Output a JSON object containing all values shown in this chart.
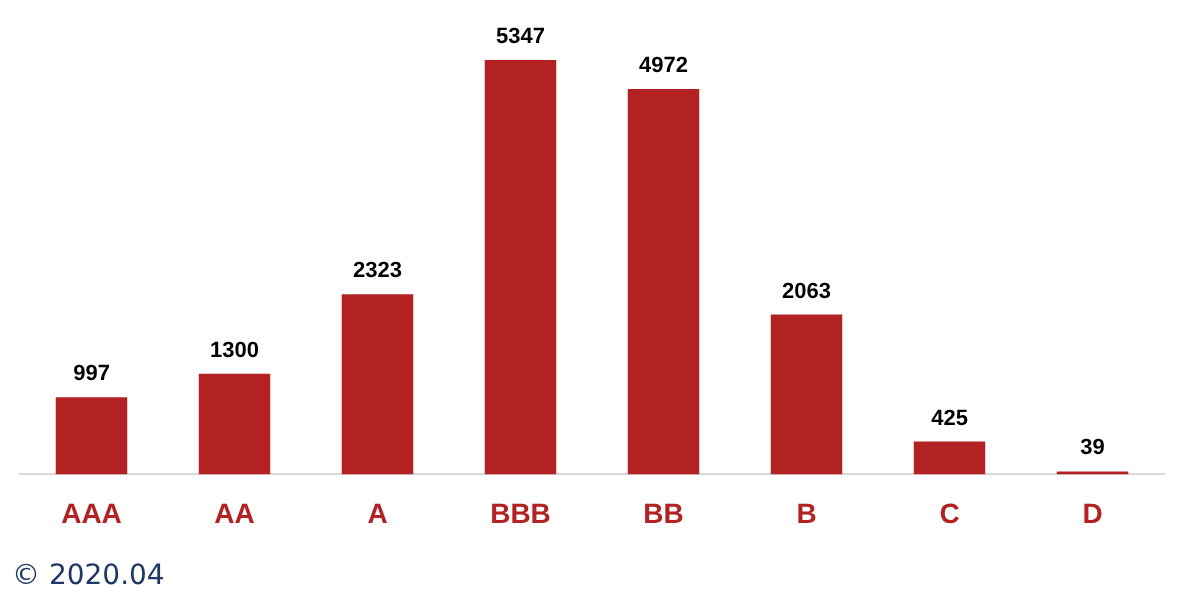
{
  "chart_data": {
    "type": "bar",
    "categories": [
      "AAA",
      "AA",
      "A",
      "BBB",
      "BB",
      "B",
      "C",
      "D"
    ],
    "values": [
      997,
      1300,
      2323,
      5347,
      4972,
      2063,
      425,
      39
    ],
    "color": "#b22222",
    "data_labels": true,
    "grid": false,
    "legend": false,
    "annotations": [
      "© 2020.04"
    ]
  }
}
